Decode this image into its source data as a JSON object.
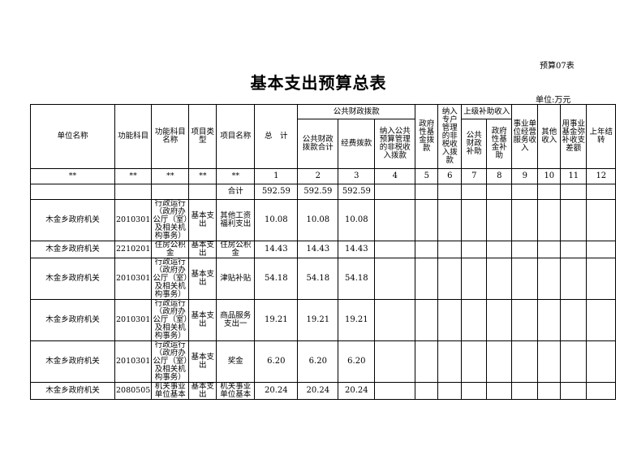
{
  "doc": {
    "code": "预算07表",
    "title": "基本支出预算总表",
    "unit": "单位:万元"
  },
  "headers": {
    "unit_name": "单位名称",
    "func_code": "功能科目",
    "func_name": "功能科目名称",
    "proj_type": "项目类型",
    "proj_name": "项目名称",
    "total": "总　计",
    "public_group": "公共财政拨款",
    "public_total": "公共财政拨款合计",
    "funds": "经费拨款",
    "nontax": "纳入公共预算管理的非税收入拨款",
    "gov_fund": "政府性基金拨款",
    "special": "纳入专户管理的非税收入拨款",
    "superior": "上级补助收入",
    "sup_public": "公共财政补助",
    "sup_fund": "政府性基金补助",
    "business": "事业单位经营服务收入",
    "other": "其他收入",
    "balance": "用事业基金弥补收支差额",
    "carry": "上年结转"
  },
  "index_row": [
    "**",
    "**",
    "**",
    "**",
    "**",
    "1",
    "2",
    "3",
    "4",
    "5",
    "6",
    "7",
    "8",
    "9",
    "10",
    "11",
    "12"
  ],
  "total_row": {
    "label": "合计",
    "total": "592.59",
    "public_total": "592.59",
    "funds": "592.59"
  },
  "rows": [
    {
      "unit": "木金乡政府机关",
      "code": "2010301",
      "fname": "行政运行（政府办公厅（室）及相关机构事务）",
      "type": "基本支出",
      "pname": "其他工资福利支出",
      "total": "10.08",
      "public_total": "10.08",
      "funds": "10.08"
    },
    {
      "unit": "木金乡政府机关",
      "code": "2210201",
      "fname": "住房公积金",
      "type": "基本支出",
      "pname": "住房公积金",
      "total": "14.43",
      "public_total": "14.43",
      "funds": "14.43"
    },
    {
      "unit": "木金乡政府机关",
      "code": "2010301",
      "fname": "行政运行（政府办公厅（室）及相关机构事务）",
      "type": "基本支出",
      "pname": "津贴补贴",
      "total": "54.18",
      "public_total": "54.18",
      "funds": "54.18"
    },
    {
      "unit": "木金乡政府机关",
      "code": "2010301",
      "fname": "行政运行（政府办公厅（室）及相关机构事务）",
      "type": "基本支出",
      "pname": "商品服务支出一",
      "total": "19.21",
      "public_total": "19.21",
      "funds": "19.21"
    },
    {
      "unit": "木金乡政府机关",
      "code": "2010301",
      "fname": "行政运行（政府办公厅（室）及相关机构事务）",
      "type": "基本支出",
      "pname": "奖金",
      "total": "6.20",
      "public_total": "6.20",
      "funds": "6.20"
    },
    {
      "unit": "木金乡政府机关",
      "code": "2080505",
      "fname": "机关事业单位基本",
      "type": "基本支出",
      "pname": "机关事业单位基本",
      "total": "20.24",
      "public_total": "20.24",
      "funds": "20.24"
    }
  ]
}
